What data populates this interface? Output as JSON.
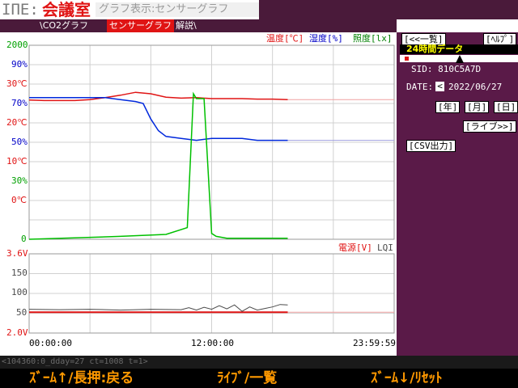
{
  "title": {
    "prefix": "IΠE:",
    "main": "会議室",
    "sub": "グラフ表示:センサーグラフ"
  },
  "tabs": [
    "\\CO2グラフ",
    "センサーグラフ",
    "解説\\"
  ],
  "legend_top": {
    "temp": "温度[℃]",
    "humid": "湿度[%]",
    "lux": "照度[lx]"
  },
  "legend_bottom": {
    "volt": "電源[V]",
    "lqi": "LQI"
  },
  "y_left_top": [
    {
      "text": "2000",
      "color": "#00a000"
    },
    {
      "text": "90%",
      "color": "#0000c8"
    },
    {
      "text": "30℃",
      "color": "#e01414"
    },
    {
      "text": "70%",
      "color": "#0000c8"
    },
    {
      "text": "20℃",
      "color": "#e01414"
    },
    {
      "text": "50%",
      "color": "#0000c8"
    },
    {
      "text": "10℃",
      "color": "#e01414"
    },
    {
      "text": "30%",
      "color": "#00a000"
    },
    {
      "text": "0℃",
      "color": "#e01414"
    },
    {
      "text": "0",
      "color": "#00a000"
    }
  ],
  "y_left_bottom": [
    {
      "text": "3.6V",
      "color": "#e01414"
    },
    {
      "text": "150",
      "color": "#4a4a4a"
    },
    {
      "text": "100",
      "color": "#4a4a4a"
    },
    {
      "text": "50",
      "color": "#4a4a4a"
    },
    {
      "text": "2.0V",
      "color": "#e01414"
    }
  ],
  "x_labels": [
    "00:00:00",
    "12:00:00",
    "23:59:59"
  ],
  "right_panel": {
    "list_button": "[<<一覧]",
    "help_button": "[ﾍﾙﾌﾟ]",
    "mode_label": "24時間データ",
    "sid": "SID: 810C5A7D",
    "date_label": "DATE:",
    "date_value": "2022/06/27",
    "prev_icon": "<",
    "year_button": "[年]",
    "month_button": "[月]",
    "day_button": "[日]",
    "live_button": "[ライブ>>]",
    "csv_button": "[CSV出力]"
  },
  "status_text": "<104360:0_dday=27 ct=1008 t=1>",
  "bottom_buttons": [
    "ｽﾞｰﾑ↑/長押:戻る",
    "ﾗｲﾌﾞ/一覧",
    "ｽﾞｰﾑ↓/ﾘｾｯﾄ"
  ],
  "colors": {
    "temp": "#e01414",
    "humid": "#0028dc",
    "lux": "#00c000",
    "volt": "#e01414",
    "lqi": "#4a4a4a",
    "panel": "#5a1a48"
  },
  "chart_data": [
    {
      "type": "line",
      "x_range": [
        "00:00:00",
        "23:59:59"
      ],
      "series": [
        {
          "name": "温度[℃]",
          "unit": "℃",
          "x": [
            0,
            1,
            2,
            3,
            4,
            5,
            6,
            7,
            8,
            9,
            10,
            11,
            12,
            13,
            14,
            15,
            16,
            17
          ],
          "values": [
            28.7,
            28.6,
            28.6,
            28.6,
            28.8,
            29.2,
            29.7,
            30.3,
            30.0,
            29.3,
            29.1,
            29.2,
            29.0,
            29.0,
            29.0,
            28.9,
            28.9,
            28.8
          ]
        },
        {
          "name": "湿度[%]",
          "unit": "%",
          "x": [
            0,
            1,
            2,
            3,
            4,
            5,
            6,
            7,
            7.5,
            8,
            8.5,
            9,
            10,
            11,
            12,
            13,
            14,
            15,
            16,
            17
          ],
          "values": [
            73,
            73,
            73,
            73,
            73,
            73,
            72,
            71,
            70,
            62,
            56,
            53,
            52,
            51,
            52,
            52,
            52,
            51,
            51,
            51
          ]
        },
        {
          "name": "照度[lx]",
          "unit": "lx",
          "x": [
            0,
            6,
            9,
            10.4,
            10.8,
            11.0,
            11.5,
            12.0,
            12.3,
            13,
            17
          ],
          "values": [
            0,
            30,
            50,
            120,
            1500,
            1450,
            1450,
            60,
            30,
            10,
            10
          ]
        }
      ]
    },
    {
      "type": "line",
      "x_range": [
        "00:00:00",
        "23:59:59"
      ],
      "series": [
        {
          "name": "電源[V]",
          "unit": "V",
          "x": [
            0,
            17
          ],
          "values": [
            2.42,
            2.42
          ]
        },
        {
          "name": "LQI",
          "x": [
            0,
            2,
            4,
            6,
            8,
            10,
            10.5,
            11,
            11.5,
            12,
            12.5,
            13,
            13.5,
            14,
            14.5,
            15,
            15.5,
            16,
            16.5,
            17
          ],
          "values": [
            60,
            59,
            60,
            58,
            60,
            59,
            64,
            58,
            65,
            60,
            69,
            61,
            71,
            55,
            66,
            58,
            62,
            66,
            72,
            71
          ]
        }
      ]
    }
  ]
}
